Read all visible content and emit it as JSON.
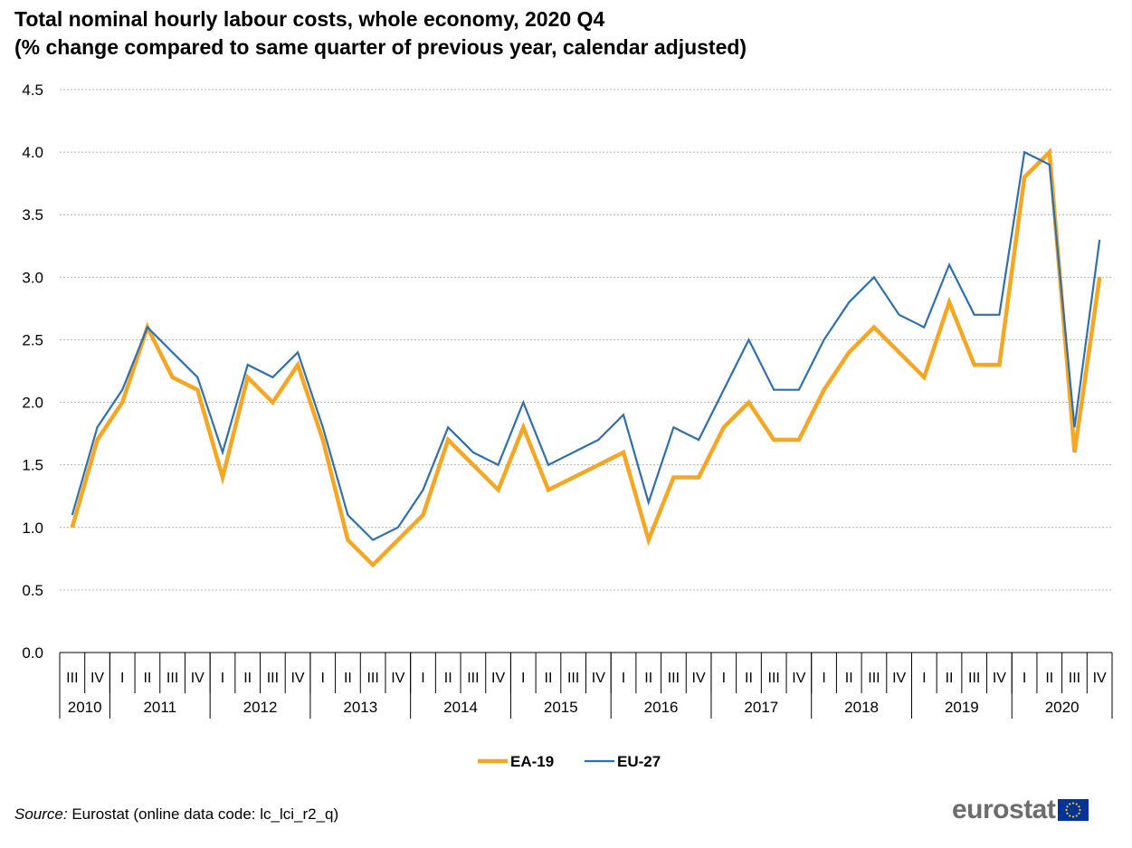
{
  "title": {
    "line1": "Total nominal hourly labour costs, whole economy, 2020 Q4",
    "line2": "(% change compared to same quarter of previous year, calendar adjusted)"
  },
  "chart_data": {
    "type": "line",
    "title": "Total nominal hourly labour costs, whole economy, 2020 Q4",
    "subtitle": "(% change compared to same quarter of previous year, calendar adjusted)",
    "xlabel": "",
    "ylabel": "",
    "ylim": [
      0,
      4.5
    ],
    "y_ticks": [
      "0.0",
      "0.5",
      "1.0",
      "1.5",
      "2.0",
      "2.5",
      "3.0",
      "3.5",
      "4.0",
      "4.5"
    ],
    "grid": true,
    "legend_position": "bottom-center",
    "quarters": [
      "III",
      "IV",
      "I",
      "II",
      "III",
      "IV",
      "I",
      "II",
      "III",
      "IV",
      "I",
      "II",
      "III",
      "IV",
      "I",
      "II",
      "III",
      "IV",
      "I",
      "II",
      "III",
      "IV",
      "I",
      "II",
      "III",
      "IV",
      "I",
      "II",
      "III",
      "IV",
      "I",
      "II",
      "III",
      "IV",
      "I",
      "II",
      "III",
      "IV",
      "I",
      "II",
      "III",
      "IV"
    ],
    "years": [
      {
        "label": "2010",
        "count": 2
      },
      {
        "label": "2011",
        "count": 4
      },
      {
        "label": "2012",
        "count": 4
      },
      {
        "label": "2013",
        "count": 4
      },
      {
        "label": "2014",
        "count": 4
      },
      {
        "label": "2015",
        "count": 4
      },
      {
        "label": "2016",
        "count": 4
      },
      {
        "label": "2017",
        "count": 4
      },
      {
        "label": "2018",
        "count": 4
      },
      {
        "label": "2019",
        "count": 4
      },
      {
        "label": "2020",
        "count": 4
      }
    ],
    "series": [
      {
        "name": "EA-19",
        "color": "#f5a623",
        "values": [
          1.0,
          1.7,
          2.0,
          2.6,
          2.2,
          2.1,
          1.4,
          2.2,
          2.0,
          2.3,
          1.7,
          0.9,
          0.7,
          0.9,
          1.1,
          1.7,
          1.5,
          1.3,
          1.8,
          1.3,
          1.4,
          1.5,
          1.6,
          0.9,
          1.4,
          1.4,
          1.8,
          2.0,
          1.7,
          1.7,
          2.1,
          2.4,
          2.6,
          2.4,
          2.2,
          2.8,
          2.3,
          2.3,
          3.8,
          4.0,
          1.6,
          3.0
        ]
      },
      {
        "name": "EU-27",
        "color": "#2e6fad",
        "values": [
          1.1,
          1.8,
          2.1,
          2.6,
          2.4,
          2.2,
          1.6,
          2.3,
          2.2,
          2.4,
          1.8,
          1.1,
          0.9,
          1.0,
          1.3,
          1.8,
          1.6,
          1.5,
          2.0,
          1.5,
          1.6,
          1.7,
          1.9,
          1.2,
          1.8,
          1.7,
          2.1,
          2.5,
          2.1,
          2.1,
          2.5,
          2.8,
          3.0,
          2.7,
          2.6,
          3.1,
          2.7,
          2.7,
          4.0,
          3.9,
          1.8,
          3.3
        ]
      }
    ]
  },
  "source": {
    "label": "Source:",
    "text": "Eurostat (online data code: lc_lci_r2_q)"
  },
  "logo": {
    "text": "eurostat",
    "flag_color": "#003399",
    "star_color": "#ffcc00"
  }
}
